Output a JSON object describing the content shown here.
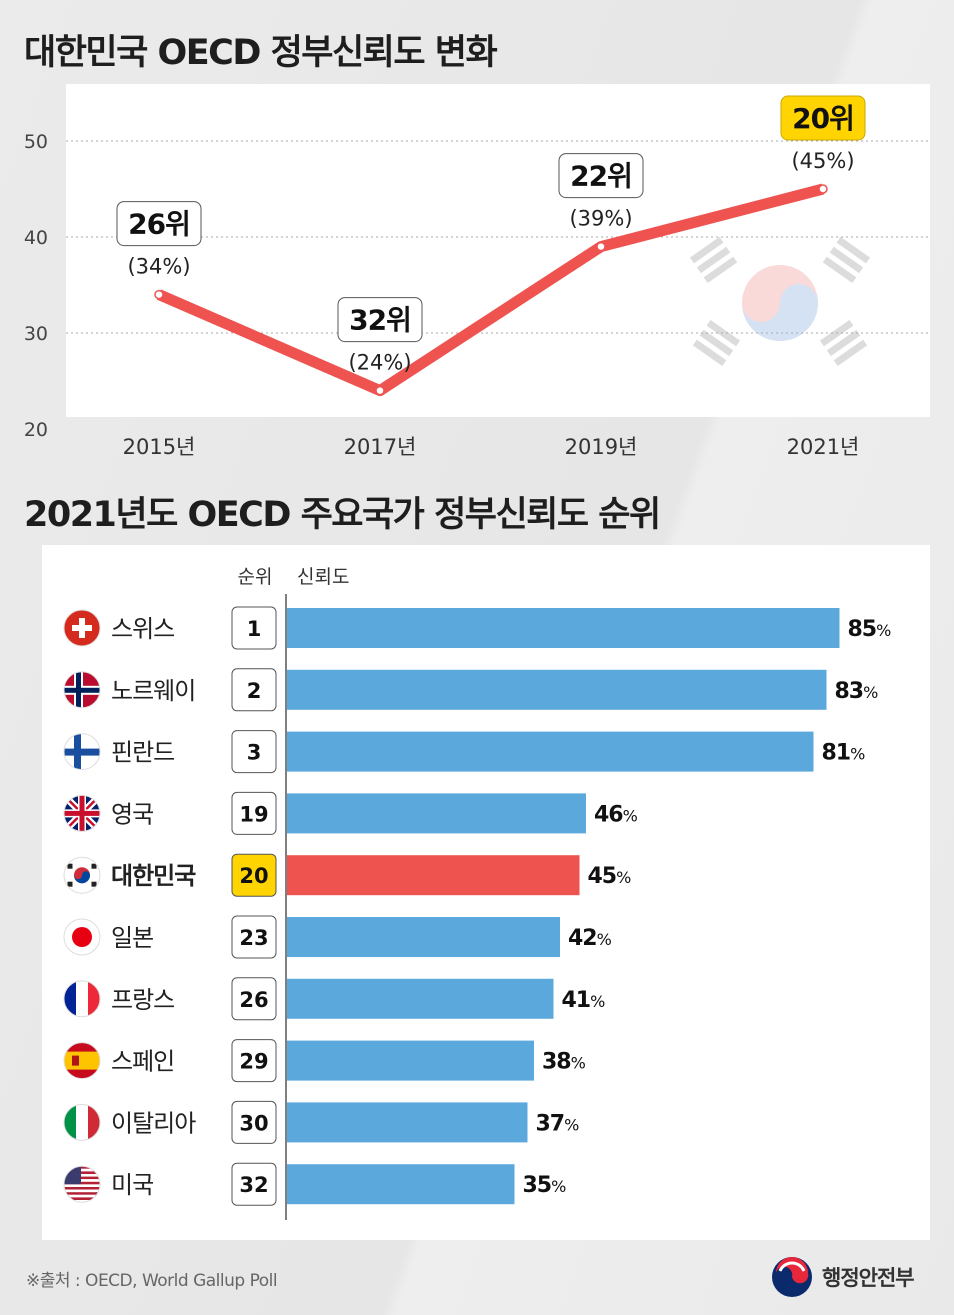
{
  "chart_data": [
    {
      "type": "line",
      "title": "대한민국 OECD 정부신뢰도 변화",
      "categories": [
        "2015년",
        "2017년",
        "2019년",
        "2021년"
      ],
      "values": [
        34,
        24,
        39,
        45
      ],
      "point_labels": [
        "(34%)",
        "(24%)",
        "(39%)",
        "(45%)"
      ],
      "rank_labels": [
        "26위",
        "32위",
        "22위",
        "20위"
      ],
      "highlight_index": 3,
      "yticks": [
        "20",
        "30",
        "40",
        "50"
      ],
      "ylim": [
        20,
        50
      ],
      "grid": true,
      "line_color": "#ef5350",
      "highlight_color": "#ffd400"
    },
    {
      "type": "bar",
      "orientation": "horizontal",
      "title": "2021년도 OECD 주요국가 정부신뢰도 순위",
      "column_headers": {
        "rank": "순위",
        "value": "신뢰도"
      },
      "categories": [
        "스위스",
        "노르웨이",
        "핀란드",
        "영국",
        "대한민국",
        "일본",
        "프랑스",
        "스페인",
        "이탈리아",
        "미국"
      ],
      "ranks": [
        "1",
        "2",
        "3",
        "19",
        "20",
        "23",
        "26",
        "29",
        "30",
        "32"
      ],
      "values": [
        85,
        83,
        81,
        46,
        45,
        42,
        41,
        38,
        37,
        35
      ],
      "value_suffix": "%",
      "flags": [
        "switzerland-flag-icon",
        "norway-flag-icon",
        "finland-flag-icon",
        "uk-flag-icon",
        "korea-flag-icon",
        "japan-flag-icon",
        "france-flag-icon",
        "spain-flag-icon",
        "italy-flag-icon",
        "usa-flag-icon"
      ],
      "highlight_index": 4,
      "bar_color": "#5ba9dc",
      "highlight_color": "#ef5350",
      "rank_highlight_color": "#ffd400"
    }
  ],
  "footer": {
    "source": "※출처 : OECD, World Gallup Poll",
    "ministry": "행정안전부"
  }
}
